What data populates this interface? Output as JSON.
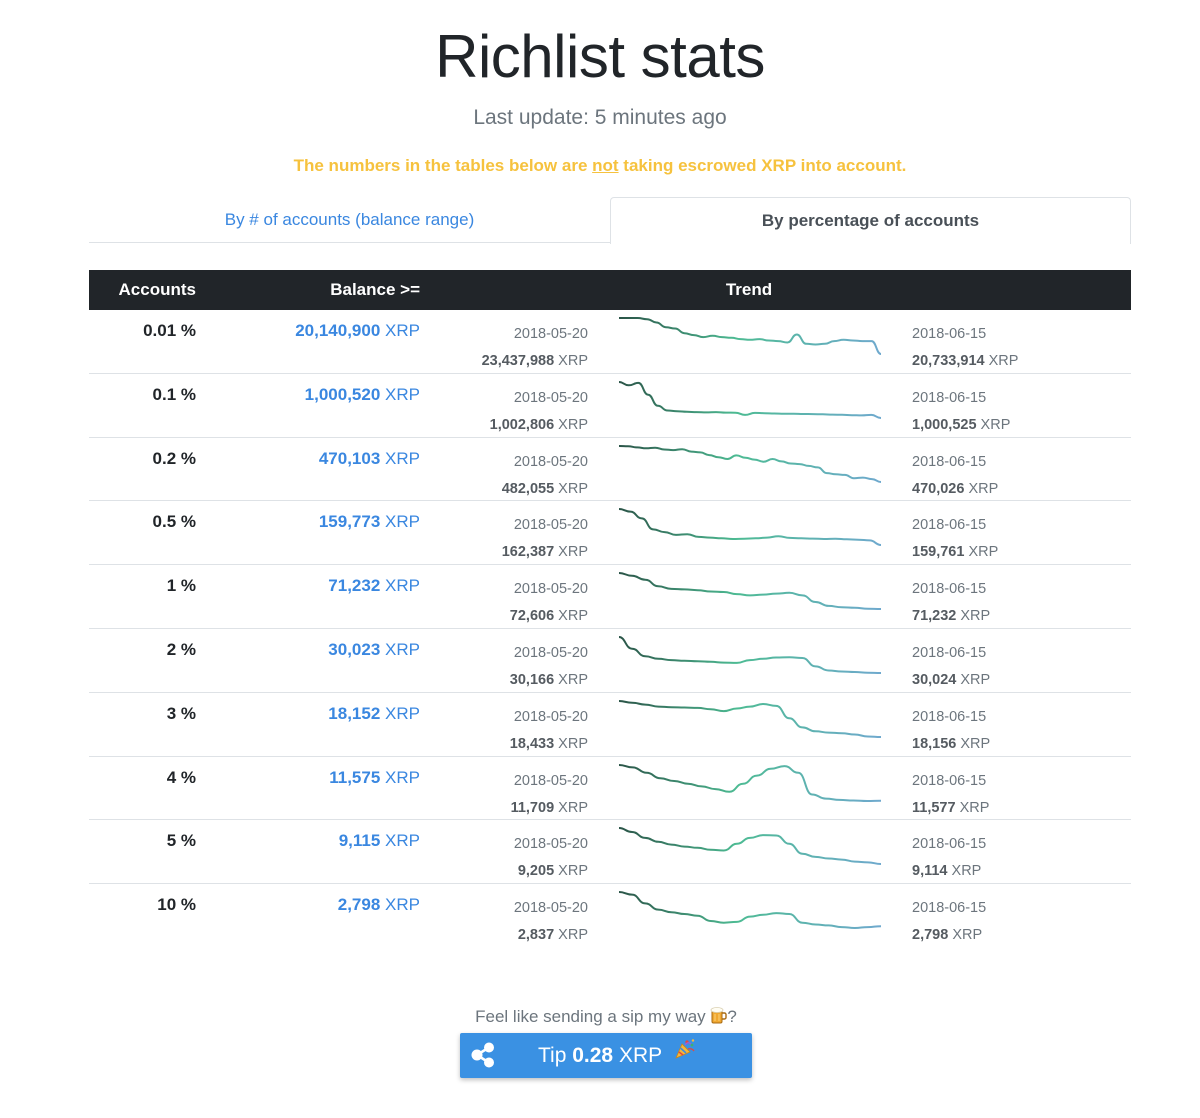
{
  "header": {
    "title": "Richlist stats",
    "subtitle": "Last update: 5 minutes ago",
    "warning_before": "The numbers in the tables below are ",
    "warning_emph": "not",
    "warning_after": " taking escrowed XRP into account."
  },
  "tabs": [
    {
      "label": "By # of accounts (balance range)",
      "active": false
    },
    {
      "label": "By percentage of accounts",
      "active": true
    }
  ],
  "table": {
    "headers": {
      "accounts": "Accounts",
      "balance": "Balance >=",
      "trend": "Trend"
    },
    "unit": "XRP",
    "start_date": "2018-05-20",
    "end_date": "2018-06-15",
    "rows": [
      {
        "accounts": "0.01 %",
        "balance": "20,140,900",
        "start_amount": "23,437,988",
        "end_amount": "20,733,914",
        "trend": [
          23437988,
          23437988,
          23437988,
          23350000,
          23100000,
          22750000,
          22650000,
          22300000,
          22150000,
          22000000,
          22100000,
          22000000,
          21950000,
          21850000,
          21800000,
          21850000,
          21750000,
          21700000,
          21600000,
          22200000,
          21500000,
          21450000,
          21500000,
          21700000,
          21800000,
          21750000,
          21700000,
          21700000,
          20733914
        ]
      },
      {
        "accounts": "0.1 %",
        "balance": "1,000,520",
        "start_amount": "1,002,806",
        "end_amount": "1,000,525",
        "trend": [
          1002806,
          1002600,
          1002750,
          1002000,
          1001300,
          1001000,
          1000950,
          1000920,
          1000900,
          1000880,
          1000900,
          1000870,
          1000860,
          1000720,
          1000850,
          1000830,
          1000810,
          1000800,
          1000790,
          1000780,
          1000770,
          1000760,
          1000740,
          1000730,
          1000700,
          1000690,
          1000720,
          1000525
        ]
      },
      {
        "accounts": "0.2 %",
        "balance": "470,103",
        "start_amount": "482,055",
        "end_amount": "470,026",
        "trend": [
          482055,
          482000,
          481600,
          481300,
          481500,
          480900,
          480700,
          481000,
          480200,
          479900,
          479000,
          478300,
          477700,
          478900,
          478100,
          477500,
          476800,
          477700,
          476900,
          476200,
          476000,
          475400,
          474900,
          473000,
          472600,
          472400,
          471300,
          471500,
          471000,
          470026
        ]
      },
      {
        "accounts": "0.5 %",
        "balance": "159,773",
        "start_amount": "162,387",
        "end_amount": "159,761",
        "trend": [
          162387,
          162200,
          161700,
          160900,
          160700,
          160500,
          160550,
          160350,
          160300,
          160250,
          160200,
          160220,
          160250,
          160300,
          160400,
          160280,
          160250,
          160230,
          160200,
          160220,
          160180,
          160150,
          160100,
          159761
        ]
      },
      {
        "accounts": "1 %",
        "balance": "71,232",
        "start_amount": "72,606",
        "end_amount": "71,232",
        "trend": [
          72606,
          72500,
          72350,
          72100,
          72000,
          71980,
          71950,
          71900,
          71880,
          71800,
          71750,
          71780,
          71820,
          71850,
          71750,
          71500,
          71350,
          71300,
          71280,
          71240,
          71232
        ]
      },
      {
        "accounts": "2 %",
        "balance": "30,023",
        "start_amount": "30,166",
        "end_amount": "30,024",
        "trend": [
          30166,
          30120,
          30090,
          30080,
          30075,
          30072,
          30070,
          30068,
          30065,
          30064,
          30075,
          30080,
          30085,
          30086,
          30083,
          30050,
          30034,
          30030,
          30028,
          30025,
          30024
        ]
      },
      {
        "accounts": "3 %",
        "balance": "18,152",
        "start_amount": "18,433",
        "end_amount": "18,156",
        "trend": [
          18433,
          18420,
          18405,
          18390,
          18385,
          18383,
          18380,
          18370,
          18355,
          18375,
          18390,
          18410,
          18395,
          18300,
          18230,
          18200,
          18190,
          18185,
          18175,
          18160,
          18156
        ]
      },
      {
        "accounts": "4 %",
        "balance": "11,575",
        "start_amount": "11,709",
        "end_amount": "11,577",
        "trend": [
          11709,
          11700,
          11680,
          11660,
          11650,
          11640,
          11630,
          11620,
          11610,
          11640,
          11670,
          11695,
          11705,
          11680,
          11600,
          11585,
          11580,
          11578,
          11576,
          11577
        ]
      },
      {
        "accounts": "5 %",
        "balance": "9,115",
        "start_amount": "9,205",
        "end_amount": "9,114",
        "trend": [
          9205,
          9195,
          9180,
          9170,
          9163,
          9158,
          9155,
          9150,
          9148,
          9165,
          9180,
          9187,
          9186,
          9165,
          9140,
          9132,
          9128,
          9125,
          9120,
          9118,
          9114
        ]
      },
      {
        "accounts": "10 %",
        "balance": "2,798",
        "start_amount": "2,837",
        "end_amount": "2,798",
        "trend": [
          2837,
          2834,
          2824,
          2817,
          2814,
          2812,
          2810,
          2804,
          2802,
          2803,
          2809,
          2811,
          2813,
          2812,
          2802,
          2800,
          2799,
          2797,
          2796,
          2797,
          2798
        ]
      }
    ]
  },
  "footer": {
    "tip_prompt": "Feel like sending a sip my way",
    "tip_prompt_end": "?",
    "tip_prefix": "Tip ",
    "tip_amount": "0.28",
    "tip_unit": " XRP"
  },
  "icons": {
    "beer": "beer-mug-icon",
    "party": "party-popper-icon",
    "xrp": "xrp-logo-icon"
  },
  "colors": {
    "accent": "#3a87e0",
    "warning": "#f6c23e",
    "header_bg": "#212529",
    "tip_button": "#3a91e3",
    "trend_start": "#2a5447",
    "trend_mid": "#4dbb93",
    "trend_end": "#6fa9ce"
  }
}
